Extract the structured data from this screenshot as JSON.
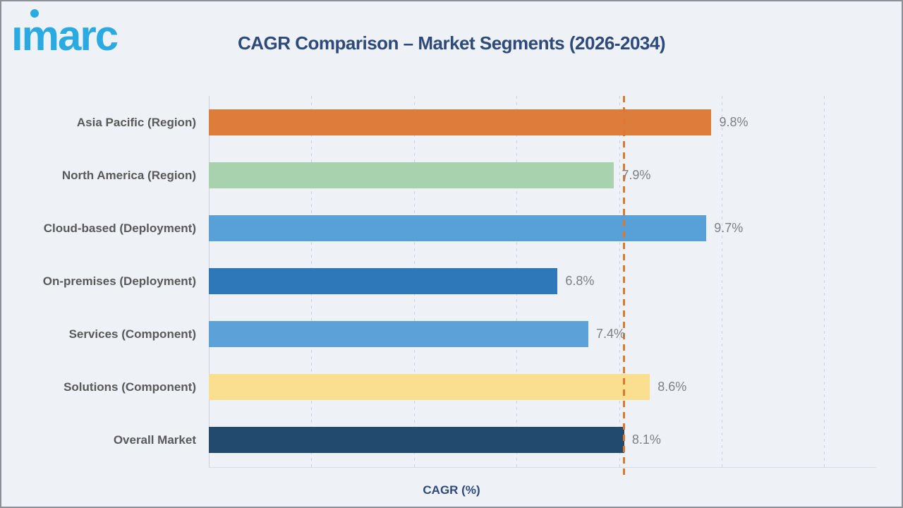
{
  "header": {
    "logo_text": "imarc"
  },
  "chart_data": {
    "type": "bar",
    "orientation": "horizontal",
    "title": "CAGR Comparison – Market Segments (2026-2034)",
    "xlabel": "CAGR (%)",
    "categories": [
      "Asia Pacific (Region)",
      "North America (Region)",
      "Cloud-based (Deployment)",
      "On-premises (Deployment)",
      "Services (Component)",
      "Solutions (Component)",
      "Overall Market"
    ],
    "values": [
      9.8,
      7.9,
      9.7,
      6.8,
      7.4,
      8.6,
      8.1
    ],
    "value_labels": [
      "9.8%",
      "7.9%",
      "9.7%",
      "6.8%",
      "7.4%",
      "8.6%",
      "8.1%"
    ],
    "bar_colors": [
      "#DD7C3B",
      "#A8D1AE",
      "#58A0D8",
      "#2E77B8",
      "#5CA2D9",
      "#FBDF90",
      "#214A6E"
    ],
    "xlim": [
      0,
      13
    ],
    "xticks": [
      0,
      2,
      4,
      6,
      8,
      10,
      12
    ],
    "grid_style": "dashed",
    "legend_position": "none",
    "reference_line": {
      "value": 8.1,
      "style": "dashed",
      "color": "#E2762F"
    }
  },
  "colors": {
    "background": "#EEF1F6",
    "heading": "#2D4A7A",
    "category_label": "#595959",
    "value_label": "#7D8084",
    "logo_blue": "#29ABE2",
    "grid": "#CCD1D9",
    "reference_line": "#E2762F",
    "frame_border": "#8D9197"
  }
}
